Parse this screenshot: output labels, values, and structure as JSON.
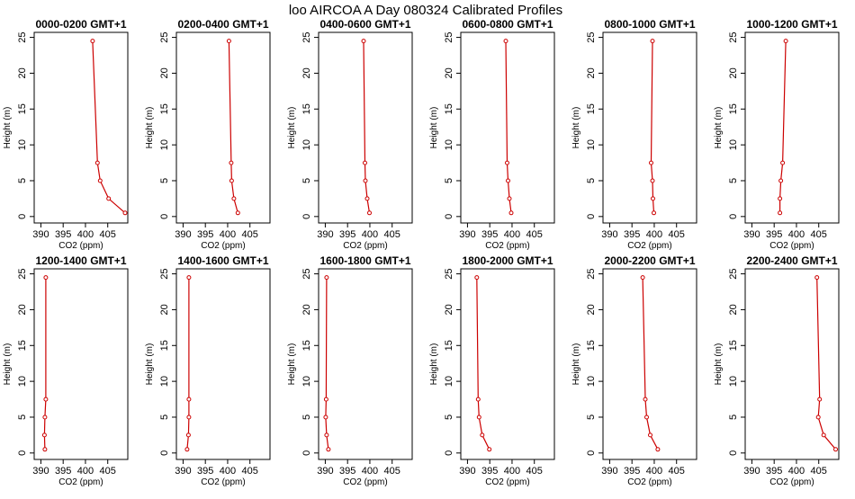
{
  "title": "loo AIRCOA A  Day 080324  Calibrated Profiles",
  "chart_data": {
    "type": "line",
    "title": "loo AIRCOA A  Day 080324  Calibrated Profiles",
    "xlabel": "CO2 (ppm)",
    "ylabel": "Height (m)",
    "xlim": [
      388.5,
      409.5
    ],
    "ylim": [
      -0.9,
      25.7
    ],
    "xticks": [
      390,
      395,
      400,
      405
    ],
    "yticks": [
      0,
      5,
      10,
      15,
      20,
      25
    ],
    "grid": false,
    "colors": {
      "series": "#cc0000"
    },
    "heights": [
      0.5,
      2.5,
      5,
      7.5,
      24.5
    ],
    "panels": [
      {
        "title": "0000-0200 GMT+1",
        "co2": [
          408.9,
          405.2,
          403.3,
          402.7,
          401.6
        ]
      },
      {
        "title": "0200-0400 GMT+1",
        "co2": [
          402.3,
          401.4,
          400.9,
          400.8,
          400.3
        ]
      },
      {
        "title": "0400-0600 GMT+1",
        "co2": [
          399.9,
          399.4,
          399.0,
          398.9,
          398.6
        ]
      },
      {
        "title": "0600-0800 GMT+1",
        "co2": [
          399.8,
          399.4,
          399.1,
          398.9,
          398.6
        ]
      },
      {
        "title": "0800-1000 GMT+1",
        "co2": [
          399.9,
          399.7,
          399.6,
          399.3,
          399.6
        ]
      },
      {
        "title": "1000-1200 GMT+1",
        "co2": [
          396.3,
          396.3,
          396.5,
          396.9,
          397.6
        ]
      },
      {
        "title": "1200-1400 GMT+1",
        "co2": [
          390.9,
          390.8,
          390.9,
          391.1,
          391.1
        ]
      },
      {
        "title": "1400-1600 GMT+1",
        "co2": [
          390.9,
          391.2,
          391.3,
          391.3,
          391.3
        ]
      },
      {
        "title": "1600-1800 GMT+1",
        "co2": [
          390.7,
          390.3,
          390.1,
          390.2,
          390.3
        ]
      },
      {
        "title": "1800-2000 GMT+1",
        "co2": [
          394.9,
          393.3,
          392.6,
          392.4,
          392.1
        ]
      },
      {
        "title": "2000-2200 GMT+1",
        "co2": [
          400.8,
          399.1,
          398.3,
          398.0,
          397.4
        ]
      },
      {
        "title": "2200-2400 GMT+1",
        "co2": [
          408.8,
          406.1,
          404.9,
          405.2,
          404.6
        ]
      }
    ]
  }
}
